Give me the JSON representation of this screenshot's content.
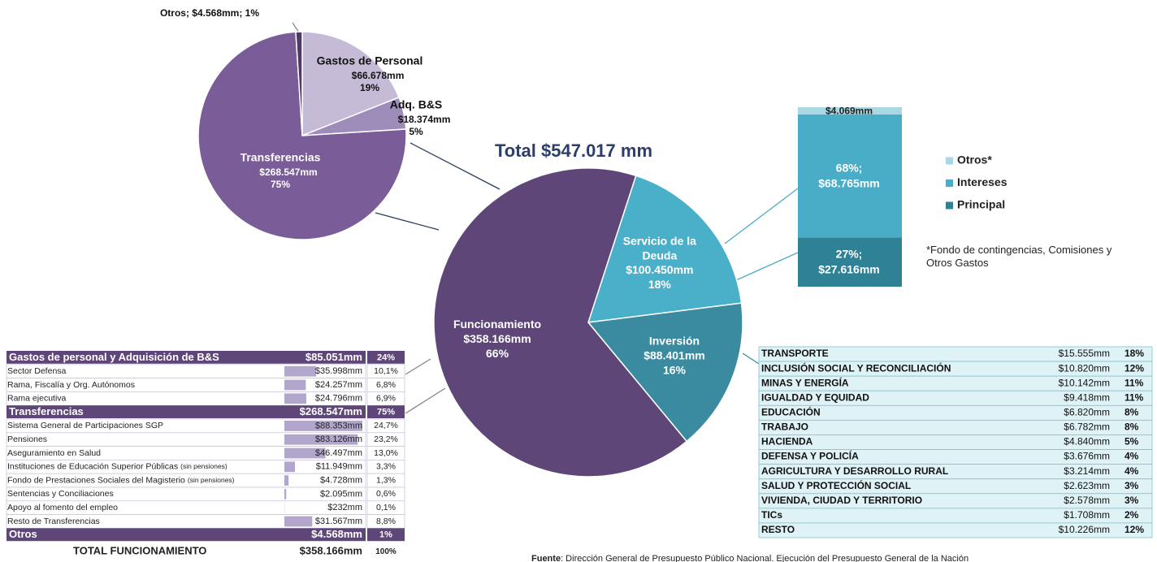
{
  "title": "Total $547.017 mm",
  "chart_data": [
    {
      "type": "pie",
      "categories": [
        "Servicio de la Deuda",
        "Inversión",
        "Funcionamiento"
      ],
      "values": [
        18,
        16,
        66
      ],
      "value_labels": [
        "18%",
        "16%",
        "66%"
      ],
      "amounts": [
        "$100.450mm",
        "$88.401mm",
        "$358.166mm"
      ],
      "colors": [
        "#4aafc8",
        "#3a8ba0",
        "#5e4778"
      ]
    },
    {
      "type": "pie",
      "categories": [
        "Gastos de Personal",
        "Adq. B&S",
        "Transferencias",
        "Otros; $4.568mm; 1%"
      ],
      "values": [
        19,
        5,
        75,
        1
      ],
      "value_labels": [
        "19%",
        "5%",
        "75%",
        null
      ],
      "amounts": [
        "$66.678mm",
        "$18.374mm",
        "$268.547mm",
        null
      ],
      "colors": [
        "#c6bbd7",
        "#9d8bba",
        "#7a5c98",
        "#4d3a66"
      ]
    },
    {
      "type": "stacked_bar",
      "series": [
        {
          "name": "Principal",
          "color": "#2f8196",
          "values": [
            27616
          ],
          "value_labels": [
            "$27.616mm"
          ],
          "percent_label": "27%;"
        },
        {
          "name": "Intereses",
          "color": "#4aadc8",
          "values": [
            68765
          ],
          "value_labels": [
            "$68.765mm"
          ],
          "percent_label": "68%;"
        },
        {
          "name": "Otros*",
          "color": "#a9d8e4",
          "values": [
            4069
          ],
          "value_labels": [
            "$4.069mm"
          ]
        }
      ],
      "note": "*Fondo de contingencias, Comisiones y Otros Gastos"
    }
  ],
  "funcionamiento_table": {
    "sections": [
      {
        "label": "Gastos de personal y Adquisición de B&S",
        "amount_label": "$85.051mm",
        "percent": "24%",
        "rows": [
          {
            "label": "Sector Defensa",
            "amount": 35998,
            "amount_label": "$35.998mm",
            "percent": "10,1%"
          },
          {
            "label": "Rama, Fiscalía y Org. Autónomos",
            "amount": 24257,
            "amount_label": "$24.257mm",
            "percent": "6,8%"
          },
          {
            "label": "Rama ejecutiva",
            "amount": 24796,
            "amount_label": "$24.796mm",
            "percent": "6,9%"
          }
        ]
      },
      {
        "label": "Transferencias",
        "amount_label": "$268.547mm",
        "percent": "75%",
        "rows": [
          {
            "label": "Sistema General de Participaciones SGP",
            "amount": 88353,
            "amount_label": "$88.353mm",
            "percent": "24,7%"
          },
          {
            "label": "Pensiones",
            "amount": 83126,
            "amount_label": "$83.126mm",
            "percent": "23,2%"
          },
          {
            "label": "Aseguramiento en Salud",
            "amount": 46497,
            "amount_label": "$46.497mm",
            "percent": "13,0%"
          },
          {
            "label": "Instituciones de Educación Superior Públicas",
            "note": "(sin pensiones)",
            "amount": 11949,
            "amount_label": "$11.949mm",
            "percent": "3,3%"
          },
          {
            "label": "Fondo de Prestaciones Sociales del Magisterio",
            "note": "(sin pensiones)",
            "amount": 4728,
            "amount_label": "$4.728mm",
            "percent": "1,3%"
          },
          {
            "label": "Sentencias y Conciliaciones",
            "amount": 2095,
            "amount_label": "$2.095mm",
            "percent": "0,6%"
          },
          {
            "label": "Apoyo al fomento del empleo",
            "amount": 232,
            "amount_label": "$232mm",
            "percent": "0,1%"
          },
          {
            "label": "Resto de Transferencias",
            "amount": 31567,
            "amount_label": "$31.567mm",
            "percent": "8,8%"
          }
        ]
      },
      {
        "label": "Otros",
        "amount_label": "$4.568mm",
        "percent": "1%",
        "rows": []
      }
    ],
    "total": {
      "label": "TOTAL FUNCIONAMIENTO",
      "amount_label": "$358.166mm",
      "percent": "100%"
    }
  },
  "inversion_table": {
    "rows": [
      {
        "label": "TRANSPORTE",
        "amount_label": "$15.555mm",
        "percent": "18%"
      },
      {
        "label": "INCLUSIÓN SOCIAL Y RECONCILIACIÓN",
        "amount_label": "$10.820mm",
        "percent": "12%"
      },
      {
        "label": "MINAS Y ENERGÍA",
        "amount_label": "$10.142mm",
        "percent": "11%"
      },
      {
        "label": "IGUALDAD Y EQUIDAD",
        "amount_label": "$9.418mm",
        "percent": "11%"
      },
      {
        "label": "EDUCACIÓN",
        "amount_label": "$6.820mm",
        "percent": "8%"
      },
      {
        "label": "TRABAJO",
        "amount_label": "$6.782mm",
        "percent": "8%"
      },
      {
        "label": "HACIENDA",
        "amount_label": "$4.840mm",
        "percent": "5%"
      },
      {
        "label": "DEFENSA Y POLICÍA",
        "amount_label": "$3.676mm",
        "percent": "4%"
      },
      {
        "label": "AGRICULTURA Y DESARROLLO RURAL",
        "amount_label": "$3.214mm",
        "percent": "4%"
      },
      {
        "label": "SALUD Y PROTECCIÓN SOCIAL",
        "amount_label": "$2.623mm",
        "percent": "3%"
      },
      {
        "label": "VIVIENDA, CIUDAD Y TERRITORIO",
        "amount_label": "$2.578mm",
        "percent": "3%"
      },
      {
        "label": "TICs",
        "amount_label": "$1.708mm",
        "percent": "2%"
      },
      {
        "label": "RESTO",
        "amount_label": "$10.226mm",
        "percent": "12%"
      }
    ]
  },
  "source": {
    "label": "Fuente",
    "text": ": Dirección General de Presupuesto Público Nacional. Ejecución del Presupuesto General de la Nación"
  }
}
